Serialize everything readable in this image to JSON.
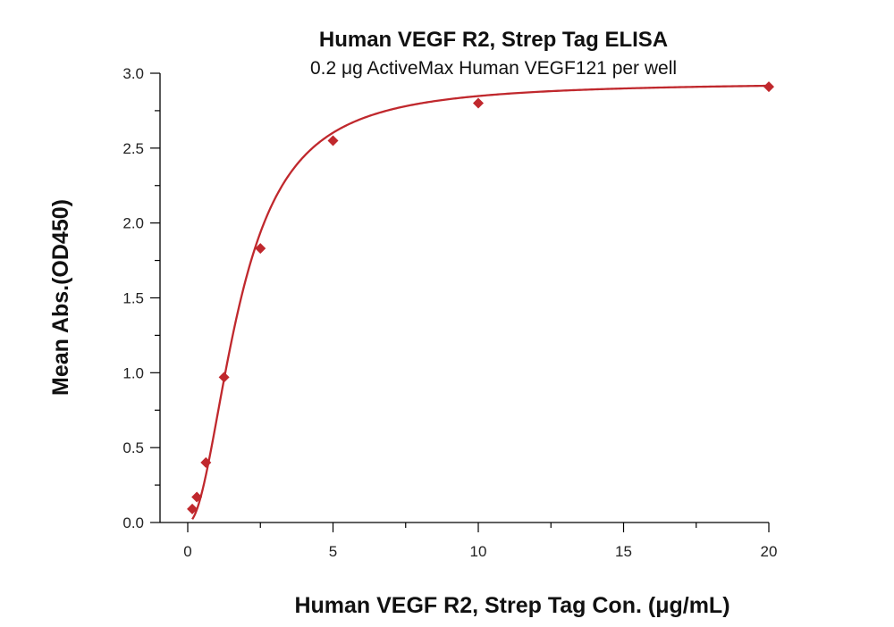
{
  "chart_data": {
    "type": "scatter",
    "title": "Human VEGF R2, Strep Tag ELISA",
    "subtitle": "0.2 μg ActiveMax Human VEGF121 per well",
    "xlabel": "Human VEGF R2, Strep Tag Con. (μg/mL)",
    "ylabel": "Mean Abs.(OD450)",
    "xlim": [
      -1,
      20
    ],
    "ylim": [
      0,
      3.0
    ],
    "x_ticks": [
      0,
      5,
      10,
      15,
      20
    ],
    "x_tick_labels": [
      "0",
      "5",
      "10",
      "15",
      "20"
    ],
    "y_ticks": [
      0,
      0.5,
      1.0,
      1.5,
      2.0,
      2.5,
      3.0
    ],
    "y_tick_labels": [
      "0.0",
      "0.5",
      "1.0",
      "1.5",
      "2.0",
      "2.5",
      "3.0"
    ],
    "grid": false,
    "series": [
      {
        "marker": "diamond",
        "color": "#c0282d",
        "x": [
          0.156,
          0.3125,
          0.625,
          1.25,
          2.5,
          5,
          10,
          20
        ],
        "y": [
          0.09,
          0.17,
          0.4,
          0.97,
          1.83,
          2.55,
          2.8,
          2.91
        ]
      }
    ],
    "fit_curve": {
      "type": "4-parameter logistic",
      "color": "#c0282d"
    }
  }
}
